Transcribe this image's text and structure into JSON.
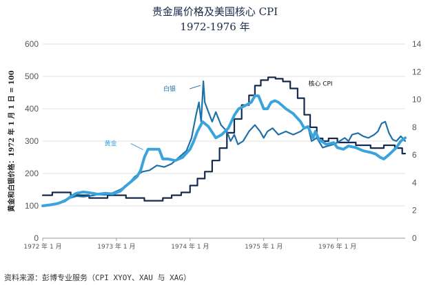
{
  "chart_data": {
    "type": "line",
    "title": "贵金属价格及美国核心 CPI",
    "subtitle": "1972-1976 年",
    "ylabel": "黄金和白银价格：1972 年 1 月 1 日 = 100",
    "y_left": {
      "lim": [
        0,
        600
      ],
      "ticks": [
        "0",
        "100",
        "200",
        "300",
        "400",
        "500",
        "600"
      ]
    },
    "y_right": {
      "lim": [
        0,
        14
      ],
      "ticks": [
        "0",
        "2",
        "4",
        "6",
        "8",
        "10",
        "12",
        "14"
      ]
    },
    "x_lim": [
      1972.0,
      1976.92
    ],
    "x_ticks": [
      {
        "value": 1972.0,
        "label": "1972 年 1 月"
      },
      {
        "value": 1973.0,
        "label": "1973 年 1 月"
      },
      {
        "value": 1974.0,
        "label": "1974 年 1 月"
      },
      {
        "value": 1975.0,
        "label": "1975 年 1 月"
      },
      {
        "value": 1976.0,
        "label": "1976 年 1 月"
      }
    ],
    "series": [
      {
        "name": "黄金",
        "axis": "left",
        "color": "#3aa3dc",
        "points": [
          [
            1972.0,
            100
          ],
          [
            1972.1,
            103
          ],
          [
            1972.2,
            107
          ],
          [
            1972.3,
            115
          ],
          [
            1972.38,
            128
          ],
          [
            1972.45,
            138
          ],
          [
            1972.55,
            143
          ],
          [
            1972.65,
            140
          ],
          [
            1972.75,
            136
          ],
          [
            1972.85,
            139
          ],
          [
            1972.95,
            137
          ],
          [
            1973.05,
            145
          ],
          [
            1973.12,
            160
          ],
          [
            1973.2,
            175
          ],
          [
            1973.28,
            190
          ],
          [
            1973.33,
            210
          ],
          [
            1973.38,
            250
          ],
          [
            1973.43,
            275
          ],
          [
            1973.5,
            275
          ],
          [
            1973.58,
            275
          ],
          [
            1973.63,
            245
          ],
          [
            1973.7,
            245
          ],
          [
            1973.8,
            240
          ],
          [
            1973.9,
            250
          ],
          [
            1974.0,
            275
          ],
          [
            1974.05,
            300
          ],
          [
            1974.1,
            330
          ],
          [
            1974.17,
            360
          ],
          [
            1974.25,
            345
          ],
          [
            1974.35,
            310
          ],
          [
            1974.43,
            320
          ],
          [
            1974.52,
            340
          ],
          [
            1974.6,
            380
          ],
          [
            1974.66,
            400
          ],
          [
            1974.75,
            410
          ],
          [
            1974.83,
            420
          ],
          [
            1974.88,
            440
          ],
          [
            1974.93,
            440
          ],
          [
            1975.0,
            400
          ],
          [
            1975.05,
            400
          ],
          [
            1975.1,
            420
          ],
          [
            1975.15,
            425
          ],
          [
            1975.2,
            420
          ],
          [
            1975.25,
            410
          ],
          [
            1975.3,
            400
          ],
          [
            1975.4,
            385
          ],
          [
            1975.5,
            360
          ],
          [
            1975.55,
            340
          ],
          [
            1975.6,
            345
          ],
          [
            1975.67,
            310
          ],
          [
            1975.7,
            330
          ],
          [
            1975.75,
            305
          ],
          [
            1975.85,
            290
          ],
          [
            1975.95,
            295
          ],
          [
            1976.0,
            280
          ],
          [
            1976.08,
            275
          ],
          [
            1976.15,
            285
          ],
          [
            1976.25,
            280
          ],
          [
            1976.35,
            270
          ],
          [
            1976.45,
            265
          ],
          [
            1976.52,
            260
          ],
          [
            1976.58,
            250
          ],
          [
            1976.63,
            245
          ],
          [
            1976.7,
            258
          ],
          [
            1976.8,
            280
          ],
          [
            1976.86,
            300
          ],
          [
            1976.92,
            310
          ]
        ]
      },
      {
        "name": "白银",
        "axis": "left",
        "color": "#1f6fa8",
        "points": [
          [
            1972.0,
            100
          ],
          [
            1972.1,
            103
          ],
          [
            1972.2,
            108
          ],
          [
            1972.3,
            118
          ],
          [
            1972.38,
            125
          ],
          [
            1972.46,
            130
          ],
          [
            1972.55,
            128
          ],
          [
            1972.65,
            131
          ],
          [
            1972.75,
            135
          ],
          [
            1972.85,
            134
          ],
          [
            1972.95,
            140
          ],
          [
            1973.05,
            150
          ],
          [
            1973.15,
            165
          ],
          [
            1973.25,
            190
          ],
          [
            1973.35,
            205
          ],
          [
            1973.45,
            210
          ],
          [
            1973.55,
            225
          ],
          [
            1973.65,
            220
          ],
          [
            1973.75,
            230
          ],
          [
            1973.85,
            250
          ],
          [
            1973.95,
            270
          ],
          [
            1974.02,
            310
          ],
          [
            1974.08,
            380
          ],
          [
            1974.12,
            420
          ],
          [
            1974.15,
            360
          ],
          [
            1974.18,
            485
          ],
          [
            1974.2,
            420
          ],
          [
            1974.25,
            390
          ],
          [
            1974.3,
            360
          ],
          [
            1974.35,
            390
          ],
          [
            1974.42,
            350
          ],
          [
            1974.5,
            330
          ],
          [
            1974.55,
            300
          ],
          [
            1974.6,
            320
          ],
          [
            1974.65,
            290
          ],
          [
            1974.72,
            300
          ],
          [
            1974.8,
            330
          ],
          [
            1974.88,
            350
          ],
          [
            1974.95,
            330
          ],
          [
            1975.0,
            310
          ],
          [
            1975.05,
            330
          ],
          [
            1975.12,
            340
          ],
          [
            1975.2,
            320
          ],
          [
            1975.3,
            330
          ],
          [
            1975.4,
            320
          ],
          [
            1975.5,
            330
          ],
          [
            1975.55,
            340
          ],
          [
            1975.6,
            345
          ],
          [
            1975.65,
            300
          ],
          [
            1975.72,
            310
          ],
          [
            1975.8,
            280
          ],
          [
            1975.87,
            285
          ],
          [
            1975.95,
            290
          ],
          [
            1976.03,
            300
          ],
          [
            1976.1,
            310
          ],
          [
            1976.15,
            300
          ],
          [
            1976.2,
            320
          ],
          [
            1976.28,
            325
          ],
          [
            1976.35,
            315
          ],
          [
            1976.42,
            310
          ],
          [
            1976.5,
            320
          ],
          [
            1976.55,
            330
          ],
          [
            1976.6,
            355
          ],
          [
            1976.65,
            360
          ],
          [
            1976.7,
            325
          ],
          [
            1976.75,
            305
          ],
          [
            1976.8,
            300
          ],
          [
            1976.86,
            315
          ],
          [
            1976.92,
            300
          ]
        ]
      },
      {
        "name": "核心 CPI",
        "axis": "right",
        "color": "#132a4e",
        "points": [
          [
            1972.0,
            3.1
          ],
          [
            1972.13,
            3.1
          ],
          [
            1972.13,
            3.3
          ],
          [
            1972.38,
            3.3
          ],
          [
            1972.38,
            3.1
          ],
          [
            1972.63,
            3.1
          ],
          [
            1972.63,
            2.9
          ],
          [
            1972.88,
            2.9
          ],
          [
            1972.88,
            3.1
          ],
          [
            1973.13,
            3.1
          ],
          [
            1973.13,
            2.9
          ],
          [
            1973.38,
            2.9
          ],
          [
            1973.38,
            2.7
          ],
          [
            1973.63,
            2.7
          ],
          [
            1973.63,
            2.9
          ],
          [
            1973.75,
            2.9
          ],
          [
            1973.75,
            3.1
          ],
          [
            1973.88,
            3.1
          ],
          [
            1973.88,
            3.3
          ],
          [
            1974.0,
            3.3
          ],
          [
            1974.0,
            3.8
          ],
          [
            1974.1,
            3.8
          ],
          [
            1974.1,
            4.3
          ],
          [
            1974.2,
            4.3
          ],
          [
            1974.2,
            4.8
          ],
          [
            1974.3,
            4.8
          ],
          [
            1974.3,
            5.6
          ],
          [
            1974.4,
            5.6
          ],
          [
            1974.4,
            6.5
          ],
          [
            1974.5,
            6.5
          ],
          [
            1974.5,
            7.6
          ],
          [
            1974.6,
            7.6
          ],
          [
            1974.6,
            8.6
          ],
          [
            1974.7,
            8.6
          ],
          [
            1974.7,
            9.6
          ],
          [
            1974.8,
            9.6
          ],
          [
            1974.8,
            10.3
          ],
          [
            1974.88,
            10.3
          ],
          [
            1974.88,
            11.0
          ],
          [
            1974.96,
            11.0
          ],
          [
            1974.96,
            11.4
          ],
          [
            1975.06,
            11.4
          ],
          [
            1975.06,
            11.6
          ],
          [
            1975.16,
            11.6
          ],
          [
            1975.16,
            11.5
          ],
          [
            1975.26,
            11.5
          ],
          [
            1975.26,
            11.3
          ],
          [
            1975.36,
            11.3
          ],
          [
            1975.36,
            10.8
          ],
          [
            1975.46,
            10.8
          ],
          [
            1975.46,
            10.1
          ],
          [
            1975.55,
            10.1
          ],
          [
            1975.55,
            8.9
          ],
          [
            1975.63,
            8.9
          ],
          [
            1975.63,
            8.0
          ],
          [
            1975.72,
            8.0
          ],
          [
            1975.72,
            7.2
          ],
          [
            1975.8,
            7.2
          ],
          [
            1975.8,
            7.0
          ],
          [
            1975.88,
            7.0
          ],
          [
            1975.88,
            7.2
          ],
          [
            1976.0,
            7.2
          ],
          [
            1976.0,
            6.9
          ],
          [
            1976.25,
            6.9
          ],
          [
            1976.25,
            6.7
          ],
          [
            1976.45,
            6.7
          ],
          [
            1976.45,
            6.5
          ],
          [
            1976.63,
            6.5
          ],
          [
            1976.63,
            6.7
          ],
          [
            1976.78,
            6.7
          ],
          [
            1976.78,
            6.5
          ],
          [
            1976.88,
            6.5
          ],
          [
            1976.88,
            6.1
          ],
          [
            1976.92,
            6.1
          ]
        ]
      }
    ],
    "annotations": [
      {
        "text": "白银",
        "series": "白银",
        "x": 1974.18,
        "y": 485
      },
      {
        "text": "黄金",
        "series": "黄金",
        "x": 1973.4,
        "y": 265
      },
      {
        "text": "核心 CPI",
        "series": "核心 CPI",
        "x": 1975.38,
        "y": 11.3
      }
    ]
  },
  "source": "资料来源：彭博专业服务（CPI XYOY、XAU 与 XAG）"
}
